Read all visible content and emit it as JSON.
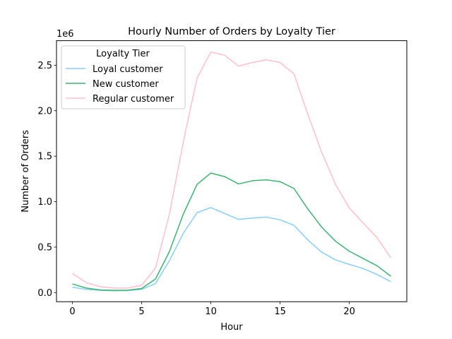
{
  "chart_data": {
    "type": "line",
    "title": "Hourly Number of Orders by Loyalty Tier",
    "xlabel": "Hour",
    "ylabel": "Number of Orders",
    "y_offset_label": "1e6",
    "xlim": [
      -1.15,
      24.15
    ],
    "ylim": [
      -0.1,
      2.77
    ],
    "x_ticks": [
      0,
      5,
      10,
      15,
      20
    ],
    "x_tick_labels": [
      "0",
      "5",
      "10",
      "15",
      "20"
    ],
    "y_ticks": [
      0.0,
      0.5,
      1.0,
      1.5,
      2.0,
      2.5
    ],
    "y_tick_labels": [
      "0.0",
      "0.5",
      "1.0",
      "1.5",
      "2.0",
      "2.5"
    ],
    "legend_title": "Loyalty Tier",
    "legend_position": "upper-left",
    "x": [
      0,
      1,
      2,
      3,
      4,
      5,
      6,
      7,
      8,
      9,
      10,
      11,
      12,
      13,
      14,
      15,
      16,
      17,
      18,
      19,
      20,
      21,
      22,
      23
    ],
    "series": [
      {
        "name": "Loyal customer",
        "color": "#87cefa",
        "values": [
          0.06,
          0.035,
          0.025,
          0.02,
          0.022,
          0.035,
          0.1,
          0.35,
          0.65,
          0.88,
          0.935,
          0.87,
          0.805,
          0.82,
          0.83,
          0.8,
          0.74,
          0.58,
          0.445,
          0.36,
          0.31,
          0.265,
          0.2,
          0.12
        ]
      },
      {
        "name": "New customer",
        "color": "#3cb371",
        "values": [
          0.095,
          0.05,
          0.03,
          0.025,
          0.027,
          0.045,
          0.15,
          0.45,
          0.86,
          1.19,
          1.315,
          1.275,
          1.195,
          1.23,
          1.24,
          1.22,
          1.145,
          0.92,
          0.72,
          0.565,
          0.455,
          0.375,
          0.295,
          0.18
        ]
      },
      {
        "name": "Regular customer",
        "color": "#ffc0cb",
        "values": [
          0.21,
          0.11,
          0.065,
          0.05,
          0.05,
          0.08,
          0.27,
          0.86,
          1.65,
          2.36,
          2.645,
          2.61,
          2.49,
          2.53,
          2.56,
          2.53,
          2.405,
          1.96,
          1.545,
          1.19,
          0.93,
          0.765,
          0.605,
          0.38
        ]
      }
    ]
  }
}
